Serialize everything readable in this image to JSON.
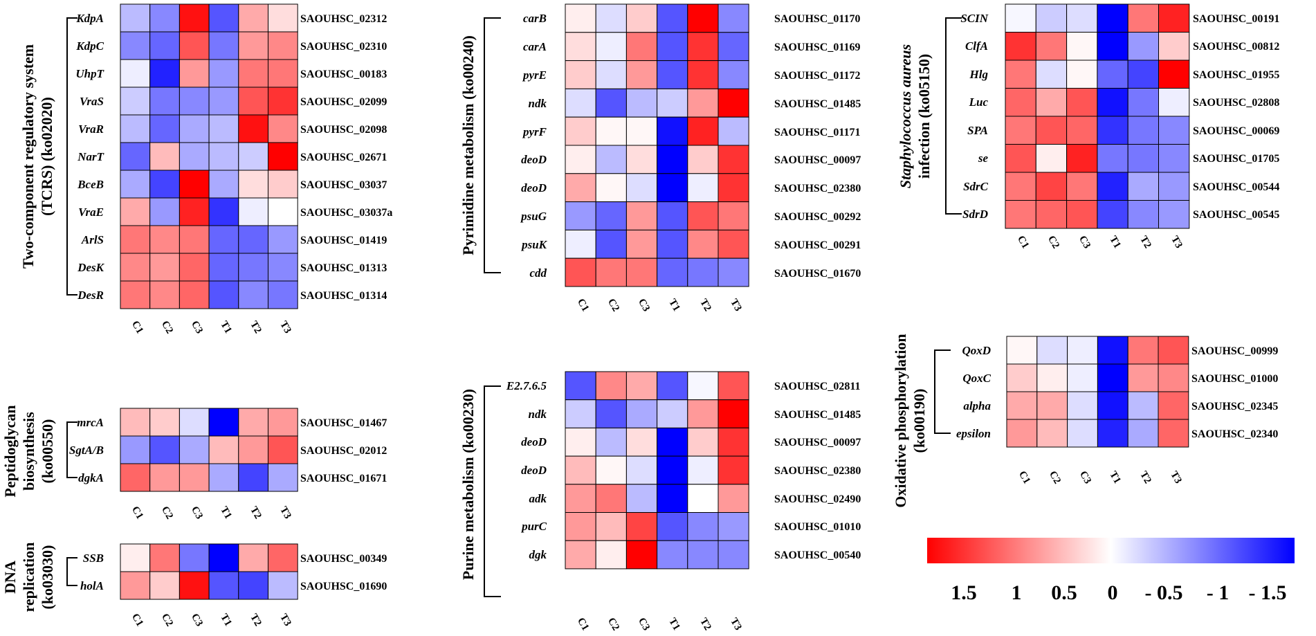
{
  "samples": [
    "C1",
    "C2",
    "C3",
    "T1",
    "T2",
    "T3"
  ],
  "chart_data": {
    "type": "heatmap",
    "color_scale": {
      "low_color": "#0000ff",
      "mid_color": "#ffffff",
      "high_color": "#ff0000",
      "range": [
        1.5,
        -1.5
      ],
      "tick_labels": [
        "1.5",
        "1",
        "0.5",
        "0",
        "- 0.5",
        "- 1",
        "- 1.5"
      ]
    },
    "panels": [
      {
        "id": "tcrs",
        "title_lines": [
          "Two-component regulatory system",
          "(TCRS) (ko02020)"
        ],
        "rows": [
          {
            "gene": "KdpA",
            "locus": "SAOUHSC_02312",
            "values": [
              -0.4,
              -0.7,
              1.4,
              -1.0,
              0.5,
              0.2
            ]
          },
          {
            "gene": "KdpC",
            "locus": "SAOUHSC_02310",
            "values": [
              -0.7,
              -0.9,
              1.0,
              -0.8,
              0.6,
              0.7
            ]
          },
          {
            "gene": "UhpT",
            "locus": "SAOUHSC_00183",
            "values": [
              -0.1,
              -1.3,
              0.6,
              -0.6,
              0.8,
              0.8
            ]
          },
          {
            "gene": "VraS",
            "locus": "SAOUHSC_02099",
            "values": [
              -0.3,
              -0.8,
              -0.7,
              -0.6,
              1.0,
              1.2
            ]
          },
          {
            "gene": "VraR",
            "locus": "SAOUHSC_02098",
            "values": [
              -0.4,
              -0.9,
              -0.5,
              -0.4,
              1.4,
              0.7
            ]
          },
          {
            "gene": "NarT",
            "locus": "SAOUHSC_02671",
            "values": [
              -0.9,
              0.4,
              -0.5,
              -0.4,
              -0.3,
              1.5
            ]
          },
          {
            "gene": "BceB",
            "locus": "SAOUHSC_03037",
            "values": [
              -0.5,
              -1.1,
              1.5,
              -0.5,
              0.2,
              0.3
            ]
          },
          {
            "gene": "VraE",
            "locus": "SAOUHSC_03037a",
            "values": [
              0.5,
              -0.6,
              1.3,
              -1.2,
              -0.1,
              0.0
            ]
          },
          {
            "gene": "ArlS",
            "locus": "SAOUHSC_01419",
            "values": [
              0.8,
              0.7,
              0.8,
              -0.9,
              -0.9,
              -0.6
            ]
          },
          {
            "gene": "DesK",
            "locus": "SAOUHSC_01313",
            "values": [
              0.7,
              0.6,
              0.9,
              -0.9,
              -0.8,
              -0.7
            ]
          },
          {
            "gene": "DesR",
            "locus": "SAOUHSC_01314",
            "values": [
              0.8,
              0.7,
              0.9,
              -1.0,
              -0.7,
              -0.8
            ]
          }
        ]
      },
      {
        "id": "peptidoglycan",
        "title_lines": [
          "Peptidoglycan",
          "biosynthesis",
          "(ko00550)"
        ],
        "rows": [
          {
            "gene": "mrcA",
            "locus": "SAOUHSC_01467",
            "values": [
              0.4,
              0.3,
              -0.2,
              -1.5,
              0.5,
              0.6
            ]
          },
          {
            "gene": "SgtA/B",
            "locus": "SAOUHSC_02012",
            "values": [
              -0.6,
              -1.0,
              -0.5,
              0.4,
              0.6,
              1.0
            ]
          },
          {
            "gene": "dgkA",
            "locus": "SAOUHSC_01671",
            "values": [
              0.9,
              0.6,
              0.6,
              -0.5,
              -1.1,
              -0.5
            ]
          }
        ]
      },
      {
        "id": "dna",
        "title_lines": [
          "DNA",
          "replication",
          "(ko03030)"
        ],
        "rows": [
          {
            "gene": "SSB",
            "locus": "SAOUHSC_00349",
            "values": [
              0.1,
              0.8,
              -0.8,
              -1.5,
              0.5,
              0.9
            ]
          },
          {
            "gene": "holA",
            "locus": "SAOUHSC_01690",
            "values": [
              0.6,
              0.3,
              1.4,
              -1.0,
              -1.1,
              -0.4
            ]
          }
        ]
      },
      {
        "id": "pyrimidine",
        "title_lines": [
          "Pyrimidine metabolism (ko00240)"
        ],
        "rows": [
          {
            "gene": "carB",
            "locus": "SAOUHSC_01170",
            "values": [
              0.1,
              -0.2,
              0.3,
              -1.0,
              1.5,
              -0.7
            ]
          },
          {
            "gene": "carA",
            "locus": "SAOUHSC_01169",
            "values": [
              0.2,
              -0.1,
              0.8,
              -1.0,
              1.2,
              -0.9
            ]
          },
          {
            "gene": "pyrE",
            "locus": "SAOUHSC_01172",
            "values": [
              0.3,
              -0.2,
              0.6,
              -1.0,
              1.2,
              -0.7
            ]
          },
          {
            "gene": "ndk",
            "locus": "SAOUHSC_01485",
            "values": [
              -0.2,
              -1.0,
              -0.4,
              -0.3,
              0.6,
              1.5
            ]
          },
          {
            "gene": "pyrF",
            "locus": "SAOUHSC_01171",
            "values": [
              0.3,
              0.05,
              0.05,
              -1.4,
              1.3,
              -0.4
            ]
          },
          {
            "gene": "deoD",
            "locus": "SAOUHSC_00097",
            "values": [
              0.1,
              -0.4,
              0.2,
              -1.5,
              0.3,
              1.2
            ]
          },
          {
            "gene": "deoD",
            "locus": "SAOUHSC_02380",
            "values": [
              0.5,
              0.05,
              -0.2,
              -1.5,
              -0.1,
              1.2
            ]
          },
          {
            "gene": "psuG",
            "locus": "SAOUHSC_00292",
            "values": [
              -0.6,
              -0.9,
              0.6,
              -1.0,
              1.0,
              0.8
            ]
          },
          {
            "gene": "psuK",
            "locus": "SAOUHSC_00291",
            "values": [
              -0.1,
              -1.0,
              0.6,
              -1.0,
              0.7,
              1.0
            ]
          },
          {
            "gene": "cdd",
            "locus": "SAOUHSC_01670",
            "values": [
              1.0,
              0.8,
              0.8,
              -0.9,
              -0.8,
              -0.7
            ]
          }
        ]
      },
      {
        "id": "purine",
        "title_lines": [
          "Purine metabolism (ko00230)"
        ],
        "rows": [
          {
            "gene": "E2.7.6.5",
            "locus": "SAOUHSC_02811",
            "values": [
              -1.0,
              0.7,
              0.5,
              -1.0,
              -0.05,
              1.0
            ]
          },
          {
            "gene": "ndk",
            "locus": "SAOUHSC_01485",
            "values": [
              -0.3,
              -1.0,
              -0.5,
              -0.3,
              0.6,
              1.5
            ]
          },
          {
            "gene": "deoD",
            "locus": "SAOUHSC_00097",
            "values": [
              0.1,
              -0.4,
              0.2,
              -1.5,
              0.3,
              1.2
            ]
          },
          {
            "gene": "deoD",
            "locus": "SAOUHSC_02380",
            "values": [
              0.4,
              0.05,
              -0.2,
              -1.5,
              -0.1,
              1.2
            ]
          },
          {
            "gene": "adk",
            "locus": "SAOUHSC_02490",
            "values": [
              0.6,
              0.8,
              -0.4,
              -1.5,
              0.0,
              0.6
            ]
          },
          {
            "gene": "purC",
            "locus": "SAOUHSC_01010",
            "values": [
              0.6,
              0.4,
              1.1,
              -1.0,
              -0.7,
              -0.6
            ]
          },
          {
            "gene": "dgk",
            "locus": "SAOUHSC_00540",
            "values": [
              0.5,
              0.1,
              1.5,
              -0.7,
              -0.7,
              -0.7
            ]
          }
        ]
      },
      {
        "id": "staph",
        "title_lines": [
          "Staphylococcus aureus",
          "infection (ko05150)"
        ],
        "rows": [
          {
            "gene": "SCIN",
            "locus": "SAOUHSC_00191",
            "values": [
              -0.05,
              -0.3,
              -0.2,
              -1.5,
              0.8,
              1.3
            ]
          },
          {
            "gene": "ClfA",
            "locus": "SAOUHSC_00812",
            "values": [
              1.2,
              0.8,
              0.05,
              -1.5,
              -0.6,
              0.3
            ]
          },
          {
            "gene": "Hlg",
            "locus": "SAOUHSC_01955",
            "values": [
              0.8,
              -0.2,
              0.05,
              -0.9,
              -1.1,
              1.5
            ]
          },
          {
            "gene": "Luc",
            "locus": "SAOUHSC_02808",
            "values": [
              0.9,
              0.5,
              1.0,
              -1.4,
              -0.8,
              -0.1
            ]
          },
          {
            "gene": "SPA",
            "locus": "SAOUHSC_00069",
            "values": [
              0.8,
              1.0,
              0.9,
              -1.2,
              -0.8,
              -0.7
            ]
          },
          {
            "gene": "se",
            "locus": "SAOUHSC_01705",
            "values": [
              1.0,
              0.1,
              1.3,
              -0.8,
              -0.8,
              -0.7
            ]
          },
          {
            "gene": "SdrC",
            "locus": "SAOUHSC_00544",
            "values": [
              0.8,
              1.1,
              0.8,
              -1.3,
              -0.5,
              -0.6
            ]
          },
          {
            "gene": "SdrD",
            "locus": "SAOUHSC_00545",
            "values": [
              0.8,
              0.9,
              1.0,
              -1.1,
              -0.7,
              -0.6
            ]
          }
        ]
      },
      {
        "id": "oxphos",
        "title_lines": [
          "Oxidative phosphorylation",
          "(ko00190)"
        ],
        "rows": [
          {
            "gene": "QoxD",
            "locus": "SAOUHSC_00999",
            "values": [
              0.05,
              -0.2,
              -0.1,
              -1.4,
              0.8,
              1.0
            ]
          },
          {
            "gene": "QoxC",
            "locus": "SAOUHSC_01000",
            "values": [
              0.3,
              0.1,
              -0.1,
              -1.5,
              0.6,
              0.7
            ]
          },
          {
            "gene": "alpha",
            "locus": "SAOUHSC_02345",
            "values": [
              0.5,
              0.5,
              -0.2,
              -1.4,
              -0.4,
              0.9
            ]
          },
          {
            "gene": "epsilon",
            "locus": "SAOUHSC_02340",
            "values": [
              0.6,
              0.4,
              -0.2,
              -1.3,
              -0.5,
              0.9
            ]
          }
        ]
      }
    ]
  }
}
